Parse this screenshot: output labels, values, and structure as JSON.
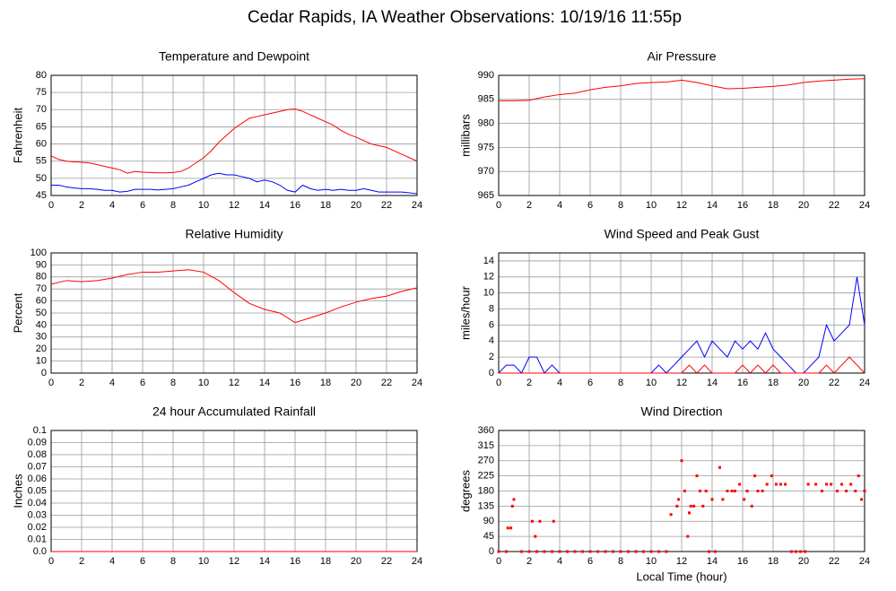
{
  "title": "Cedar Rapids, IA Weather Observations: 10/19/16 11:55p",
  "chart_data": [
    {
      "type": "line",
      "title": "Temperature and Dewpoint",
      "ylabel": "Fahrenheit",
      "x": [
        0,
        0.5,
        1,
        1.5,
        2,
        2.5,
        3,
        3.5,
        4,
        4.5,
        5,
        5.5,
        6,
        6.5,
        7,
        7.5,
        8,
        8.5,
        9,
        9.5,
        10,
        10.5,
        11,
        11.5,
        12,
        12.5,
        13,
        13.5,
        14,
        14.5,
        15,
        15.5,
        16,
        16.5,
        17,
        17.5,
        18,
        18.5,
        19,
        19.5,
        20,
        20.5,
        21,
        21.5,
        22,
        22.5,
        23,
        23.5,
        24
      ],
      "series": [
        {
          "color": "#ff0000",
          "values": [
            56.5,
            55.5,
            55,
            54.8,
            54.7,
            54.5,
            54,
            53.5,
            53,
            52.5,
            51.5,
            52,
            51.8,
            51.7,
            51.6,
            51.6,
            51.7,
            52,
            53,
            54.5,
            56,
            58,
            60.5,
            62.5,
            64.5,
            66,
            67.5,
            68,
            68.5,
            69,
            69.5,
            70,
            70.2,
            69.5,
            68.5,
            67.5,
            66.5,
            65.5,
            64,
            62.8,
            62,
            61,
            60,
            59.5,
            59,
            58,
            57,
            56,
            55
          ]
        },
        {
          "color": "#0000ff",
          "values": [
            48,
            48,
            47.5,
            47.2,
            47,
            47,
            46.8,
            46.5,
            46.5,
            46,
            46.2,
            46.8,
            46.8,
            46.8,
            46.6,
            46.8,
            47,
            47.5,
            48,
            49,
            50,
            51,
            51.5,
            51,
            51,
            50.5,
            50,
            49,
            49.5,
            49,
            48,
            46.5,
            46,
            48,
            47,
            46.5,
            46.8,
            46.5,
            46.8,
            46.5,
            46.5,
            47,
            46.5,
            46,
            46,
            46,
            46,
            45.8,
            45.5
          ]
        }
      ],
      "xlim": [
        0,
        24
      ],
      "xticks": [
        0,
        2,
        4,
        6,
        8,
        10,
        12,
        14,
        16,
        18,
        20,
        22,
        24
      ],
      "ylim": [
        45,
        80
      ],
      "yticks": [
        45,
        50,
        55,
        60,
        65,
        70,
        75,
        80
      ],
      "grid": true
    },
    {
      "type": "line",
      "title": "Air Pressure",
      "ylabel": "millibars",
      "x": [
        0,
        1,
        2,
        3,
        4,
        5,
        6,
        7,
        8,
        9,
        10,
        11,
        12,
        13,
        14,
        15,
        16,
        17,
        18,
        19,
        20,
        21,
        22,
        23,
        24
      ],
      "series": [
        {
          "color": "#ff0000",
          "values": [
            984.7,
            984.7,
            984.8,
            985.5,
            986,
            986.3,
            987,
            987.5,
            987.8,
            988.3,
            988.5,
            988.6,
            989,
            988.5,
            987.8,
            987.2,
            987.3,
            987.5,
            987.7,
            988,
            988.5,
            988.8,
            989,
            989.2,
            989.3
          ]
        }
      ],
      "xlim": [
        0,
        24
      ],
      "xticks": [
        0,
        2,
        4,
        6,
        8,
        10,
        12,
        14,
        16,
        18,
        20,
        22,
        24
      ],
      "ylim": [
        965,
        990
      ],
      "yticks": [
        965,
        970,
        975,
        980,
        985,
        990
      ],
      "grid": true
    },
    {
      "type": "line",
      "title": "Relative Humidity",
      "ylabel": "Percent",
      "x": [
        0,
        1,
        2,
        3,
        4,
        5,
        6,
        7,
        8,
        9,
        10,
        11,
        12,
        13,
        14,
        15,
        16,
        17,
        18,
        19,
        20,
        21,
        22,
        23,
        24
      ],
      "series": [
        {
          "color": "#ff0000",
          "values": [
            74,
            77,
            76,
            77,
            79,
            82,
            84,
            84,
            85,
            86,
            84,
            77,
            67,
            58,
            53,
            50,
            42,
            46,
            50,
            55,
            59,
            62,
            64,
            68,
            71
          ]
        }
      ],
      "xlim": [
        0,
        24
      ],
      "xticks": [
        0,
        2,
        4,
        6,
        8,
        10,
        12,
        14,
        16,
        18,
        20,
        22,
        24
      ],
      "ylim": [
        0,
        100
      ],
      "yticks": [
        0,
        10,
        20,
        30,
        40,
        50,
        60,
        70,
        80,
        90,
        100
      ],
      "grid": true
    },
    {
      "type": "line",
      "title": "Wind Speed and Peak Gust",
      "ylabel": "miles/hour",
      "x": [
        0,
        0.5,
        1,
        1.5,
        2,
        2.5,
        3,
        3.5,
        4,
        4.5,
        5,
        5.5,
        6,
        6.5,
        7,
        7.5,
        8,
        8.5,
        9,
        9.5,
        10,
        10.5,
        11,
        11.5,
        12,
        12.5,
        13,
        13.5,
        14,
        14.5,
        15,
        15.5,
        16,
        16.5,
        17,
        17.5,
        18,
        18.5,
        19,
        19.5,
        20,
        20.5,
        21,
        21.5,
        22,
        22.5,
        23,
        23.5,
        24
      ],
      "series": [
        {
          "color": "#0000ff",
          "values": [
            0,
            1,
            1,
            0,
            2,
            2,
            0,
            1,
            0,
            0,
            0,
            0,
            0,
            0,
            0,
            0,
            0,
            0,
            0,
            0,
            0,
            1,
            0,
            1,
            2,
            3,
            4,
            2,
            4,
            3,
            2,
            4,
            3,
            4,
            3,
            5,
            3,
            2,
            1,
            0,
            0,
            1,
            2,
            6,
            4,
            5,
            6,
            12,
            6
          ]
        },
        {
          "color": "#ff0000",
          "values": [
            0,
            0,
            0,
            0,
            0,
            0,
            0,
            0,
            0,
            0,
            0,
            0,
            0,
            0,
            0,
            0,
            0,
            0,
            0,
            0,
            0,
            0,
            0,
            0,
            0,
            1,
            0,
            1,
            0,
            0,
            0,
            0,
            1,
            0,
            1,
            0,
            1,
            0,
            0,
            0,
            0,
            0,
            0,
            1,
            0,
            1,
            2,
            1,
            0
          ]
        }
      ],
      "xlim": [
        0,
        24
      ],
      "xticks": [
        0,
        2,
        4,
        6,
        8,
        10,
        12,
        14,
        16,
        18,
        20,
        22,
        24
      ],
      "ylim": [
        0,
        15
      ],
      "yticks": [
        0,
        2,
        4,
        6,
        8,
        10,
        12,
        14
      ],
      "grid": true
    },
    {
      "type": "line",
      "title": "24 hour Accumulated Rainfall",
      "ylabel": "Inches",
      "x": [
        0,
        24
      ],
      "series": [
        {
          "color": "#ff0000",
          "values": [
            0,
            0
          ]
        }
      ],
      "xlim": [
        0,
        24
      ],
      "xticks": [
        0,
        2,
        4,
        6,
        8,
        10,
        12,
        14,
        16,
        18,
        20,
        22,
        24
      ],
      "ylim": [
        0,
        0.1
      ],
      "yticks": [
        {
          "value": 0,
          "label": "0.0"
        },
        0.01,
        0.02,
        0.03,
        0.04,
        0.05,
        0.06,
        0.07,
        0.08,
        0.09,
        0.1
      ],
      "grid": true
    },
    {
      "type": "scatter",
      "title": "Wind Direction",
      "ylabel": "degrees",
      "xlabel": "Local Time (hour)",
      "x": [
        0,
        0.5,
        0.6,
        0.8,
        0.9,
        1,
        1.5,
        2,
        2.2,
        2.4,
        2.5,
        2.7,
        3,
        3.5,
        3.6,
        4,
        4.5,
        5,
        5.5,
        6,
        6.5,
        7,
        7.5,
        8,
        8.5,
        9,
        9.5,
        10,
        10.5,
        11,
        11.3,
        11.7,
        11.8,
        12,
        12.2,
        12.4,
        12.5,
        12.6,
        12.8,
        13,
        13.2,
        13.4,
        13.6,
        13.8,
        14,
        14.2,
        14.5,
        14.7,
        15,
        15.3,
        15.5,
        15.8,
        16.1,
        16.3,
        16.6,
        16.8,
        17,
        17.3,
        17.6,
        17.9,
        18.2,
        18.5,
        18.8,
        19.2,
        19.5,
        19.8,
        20.1,
        20.3,
        20.8,
        21.2,
        21.5,
        21.8,
        22.2,
        22.5,
        22.8,
        23.1,
        23.4,
        23.6,
        23.8,
        24
      ],
      "series": [
        {
          "color": "#ff0000",
          "values": [
            0,
            0,
            70,
            70,
            135,
            155,
            0,
            0,
            90,
            45,
            0,
            90,
            0,
            0,
            90,
            0,
            0,
            0,
            0,
            0,
            0,
            0,
            0,
            0,
            0,
            0,
            0,
            0,
            0,
            0,
            110,
            135,
            155,
            270,
            180,
            45,
            115,
            135,
            135,
            225,
            180,
            135,
            180,
            0,
            155,
            0,
            250,
            155,
            180,
            180,
            180,
            200,
            155,
            180,
            135,
            225,
            180,
            180,
            200,
            225,
            200,
            200,
            200,
            0,
            0,
            0,
            0,
            200,
            200,
            180,
            200,
            200,
            180,
            200,
            180,
            200,
            180,
            225,
            155,
            180
          ]
        }
      ],
      "xlim": [
        0,
        24
      ],
      "xticks": [
        0,
        2,
        4,
        6,
        8,
        10,
        12,
        14,
        16,
        18,
        20,
        22,
        24
      ],
      "ylim": [
        0,
        360
      ],
      "yticks": [
        0,
        45,
        90,
        135,
        180,
        225,
        270,
        315,
        360
      ],
      "grid": true
    }
  ]
}
